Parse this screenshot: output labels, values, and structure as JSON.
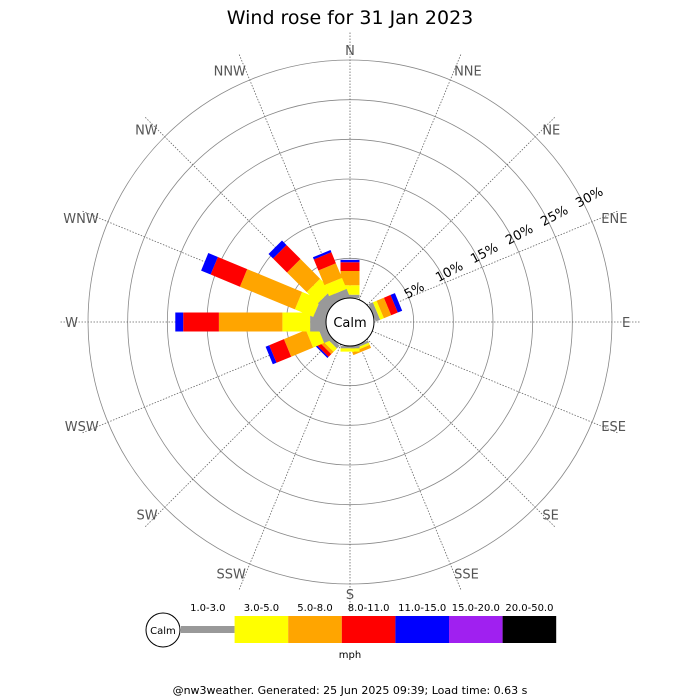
{
  "chart_data": {
    "type": "wind-rose",
    "title": "Wind rose for 31 Jan 2023",
    "directions": [
      "N",
      "NNE",
      "NE",
      "ENE",
      "E",
      "ESE",
      "SE",
      "SSE",
      "S",
      "SSW",
      "SW",
      "WSW",
      "W",
      "WNW",
      "NW",
      "NNW"
    ],
    "ring_labels": [
      "5%",
      "10%",
      "15%",
      "20%",
      "25%",
      "30%"
    ],
    "ring_values": [
      5,
      10,
      15,
      20,
      25,
      30
    ],
    "max_percent": 30,
    "calm_label": "Calm",
    "unit": "mph",
    "speed_bins": [
      {
        "label": "1.0-3.0",
        "color": "#999999"
      },
      {
        "label": "3.0-5.0",
        "color": "#ffff00"
      },
      {
        "label": "5.0-8.0",
        "color": "#ffa500"
      },
      {
        "label": "8.0-11.0",
        "color": "#ff0000"
      },
      {
        "label": "11.0-15.0",
        "color": "#0000ff"
      },
      {
        "label": "15.0-20.0",
        "color": "#a020f0"
      },
      {
        "label": "20.0-50.0",
        "color": "#000000"
      }
    ],
    "series": [
      {
        "direction": "N",
        "values": [
          0.4,
          1.2,
          1.8,
          1.1,
          0.3,
          0,
          0
        ]
      },
      {
        "direction": "NNE",
        "values": [
          0,
          0,
          0,
          0,
          0,
          0,
          0
        ]
      },
      {
        "direction": "NE",
        "values": [
          0,
          0,
          0,
          0,
          0,
          0,
          0
        ]
      },
      {
        "direction": "ENE",
        "values": [
          0.6,
          0.5,
          1.0,
          0.9,
          0.6,
          0,
          0
        ]
      },
      {
        "direction": "E",
        "values": [
          0,
          0,
          0,
          0,
          0,
          0,
          0
        ]
      },
      {
        "direction": "ESE",
        "values": [
          0,
          0,
          0,
          0,
          0,
          0,
          0
        ]
      },
      {
        "direction": "SE",
        "values": [
          0,
          0,
          0,
          0,
          0,
          0,
          0
        ]
      },
      {
        "direction": "SSE",
        "values": [
          0.3,
          0.3,
          0.4,
          0,
          0,
          0,
          0
        ]
      },
      {
        "direction": "S",
        "values": [
          0.3,
          0.4,
          0,
          0,
          0,
          0,
          0
        ]
      },
      {
        "direction": "SSW",
        "values": [
          0,
          0,
          0,
          0,
          0,
          0,
          0
        ]
      },
      {
        "direction": "SW",
        "values": [
          0.5,
          0.6,
          0.4,
          0.5,
          0.2,
          0,
          0
        ]
      },
      {
        "direction": "WSW",
        "values": [
          1.0,
          1.5,
          3.0,
          2.0,
          0.5,
          0,
          0
        ]
      },
      {
        "direction": "W",
        "values": [
          2.0,
          3.5,
          8.0,
          4.5,
          1.0,
          0,
          0
        ]
      },
      {
        "direction": "WNW",
        "values": [
          1.5,
          2.5,
          7.5,
          4.0,
          1.3,
          0,
          0
        ]
      },
      {
        "direction": "NW",
        "values": [
          1.5,
          2.0,
          3.5,
          2.5,
          0.8,
          0,
          0
        ]
      },
      {
        "direction": "NNW",
        "values": [
          1.0,
          1.5,
          2.0,
          1.5,
          0.3,
          0,
          0
        ]
      }
    ],
    "grid": true,
    "legend_position": "bottom"
  },
  "footer": "@nw3weather. Generated: 25 Jun 2025 09:39; Load time: 0.63 s"
}
